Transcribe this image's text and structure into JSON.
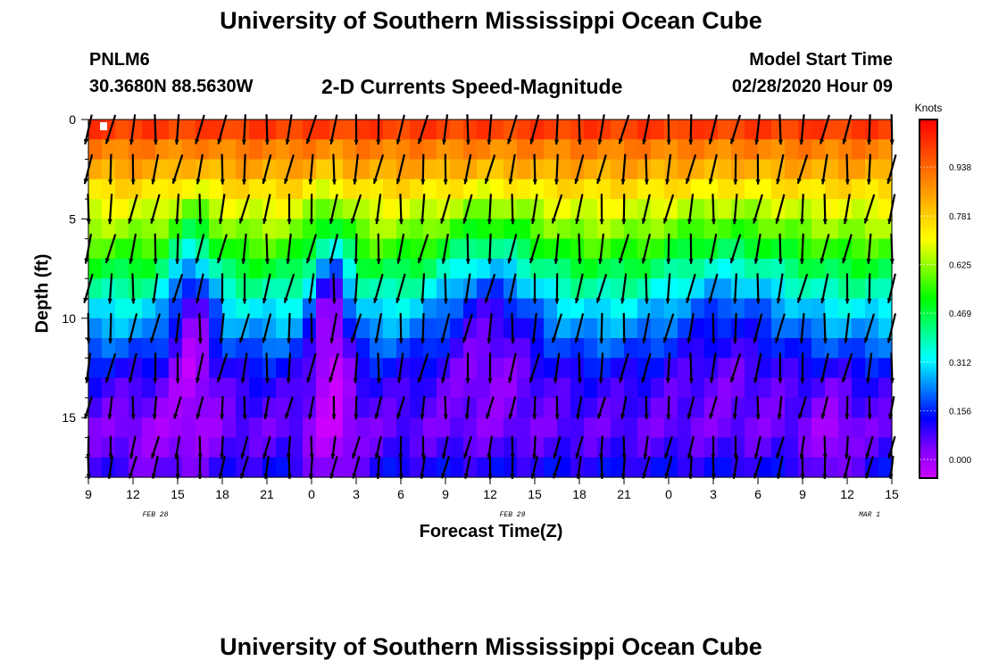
{
  "header": {
    "title_top": "University of Southern Mississippi Ocean Cube",
    "title_bottom": "University of Southern Mississippi Ocean Cube",
    "station_id": "PNLM6",
    "station_coords": "30.3680N 88.5630W",
    "model_start_label": "Model Start Time",
    "model_start_value": "02/28/2020 Hour 09",
    "plot_title": "2-D Currents Speed-Magnitude"
  },
  "chart_data": {
    "type": "heatmap",
    "title": "2-D Currents Speed-Magnitude",
    "xlabel": "Forecast Time(Z)",
    "ylabel": "Depth (ft)",
    "x_tick_labels": [
      "9",
      "12",
      "15",
      "18",
      "21",
      "0",
      "3",
      "6",
      "9",
      "12",
      "15",
      "18",
      "21",
      "0",
      "3",
      "6",
      "9",
      "12",
      "15"
    ],
    "date_labels": [
      {
        "label": "FEB 28",
        "tick_index": 1.5
      },
      {
        "label": "FEB 29",
        "tick_index": 9.5
      },
      {
        "label": "MAR 1",
        "tick_index": 17.5
      }
    ],
    "x_range_hours": [
      0,
      54
    ],
    "y_ticks": [
      0,
      5,
      10,
      15
    ],
    "ylim": [
      0,
      18
    ],
    "y_inverted": true,
    "colorbar": {
      "title": "Knots",
      "ticks": [
        "0.000",
        "0.156",
        "0.312",
        "0.469",
        "0.625",
        "0.781",
        "0.938"
      ],
      "range": [
        -0.06,
        1.09
      ],
      "colors": [
        "#cc00ff",
        "#7f00ff",
        "#0000ff",
        "#0080ff",
        "#00ffff",
        "#00ff80",
        "#00ff00",
        "#80ff00",
        "#ffff00",
        "#ffc000",
        "#ff8000",
        "#ff4000",
        "#ff0000"
      ]
    },
    "depth_levels_ft": [
      0.5,
      1.5,
      2.5,
      3.5,
      4.5,
      5.5,
      6.5,
      7.5,
      8.5,
      9.5,
      10.5,
      11.5,
      12.5,
      13.5,
      14.5,
      15.5,
      16.5,
      17.5
    ],
    "speed_profile_knots": [
      1.0,
      0.9,
      0.84,
      0.76,
      0.69,
      0.63,
      0.56,
      0.48,
      0.4,
      0.32,
      0.26,
      0.2,
      0.14,
      0.1,
      0.08,
      0.06,
      0.08,
      0.12
    ],
    "arrow_depths_ft": [
      0.5,
      2.5,
      4.5,
      6.5,
      8.5,
      10.5,
      12.5,
      14.5,
      16.5,
      17.5
    ],
    "arrow_time_step_hours": 1.5,
    "arrow_direction": "mostly southward (downward), occasional southwest"
  }
}
